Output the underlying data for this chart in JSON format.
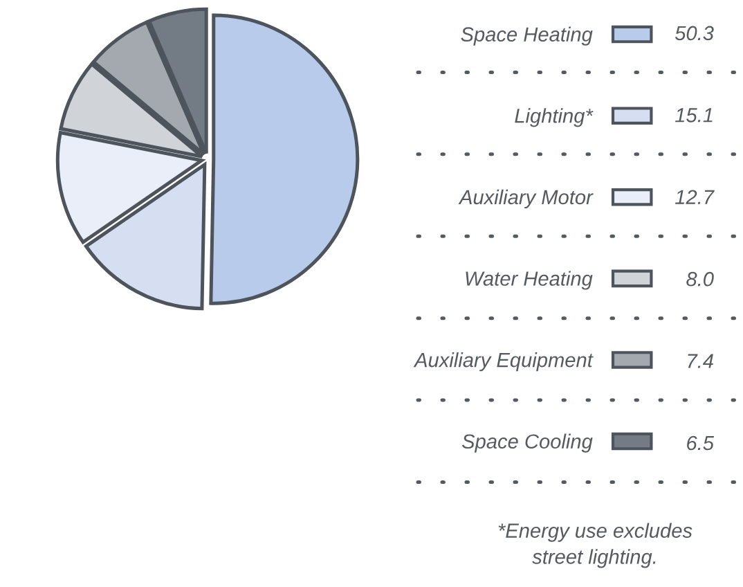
{
  "chart_data": {
    "type": "pie",
    "categories": [
      "Space Heating",
      "Lighting*",
      "Auxiliary Motor",
      "Water Heating",
      "Auxiliary Equipment",
      "Space Cooling"
    ],
    "values": [
      50.3,
      15.1,
      12.7,
      8.0,
      7.4,
      6.5
    ],
    "value_labels": [
      "50.3",
      "15.1",
      "12.7",
      "8.0",
      "7.4",
      "6.5"
    ],
    "colors": [
      "#b9cbea",
      "#d6dff2",
      "#eaeef8",
      "#d0d4d9",
      "#a4a9b0",
      "#737b85"
    ],
    "legend": "right",
    "annotations": [
      "*Energy use excludes\nstreet lighting."
    ]
  }
}
